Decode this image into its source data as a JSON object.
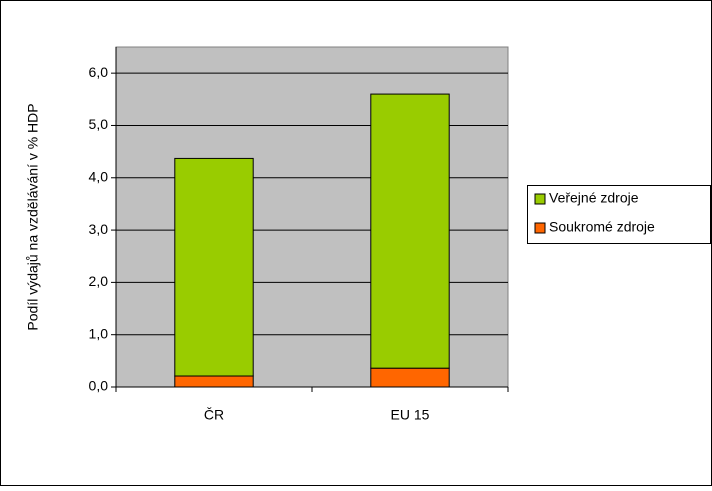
{
  "chart_data": {
    "type": "stacked_bar",
    "ylabel": "Podíl výdajů na vzdělávání v % HDP",
    "categories": [
      "ČR",
      "EU 15"
    ],
    "series": [
      {
        "name": "Soukromé zdroje",
        "color": "#ff6600",
        "values": [
          0.21,
          0.36
        ]
      },
      {
        "name": "Veřejné zdroje",
        "color": "#99cc00",
        "values": [
          4.16,
          5.24
        ]
      }
    ],
    "ylim": [
      0,
      6.5
    ],
    "yticks": [
      {
        "value": 0,
        "label": "0,0"
      },
      {
        "value": 1,
        "label": "1,0"
      },
      {
        "value": 2,
        "label": "2,0"
      },
      {
        "value": 3,
        "label": "3,0"
      },
      {
        "value": 4,
        "label": "4,0"
      },
      {
        "value": 5,
        "label": "5,0"
      },
      {
        "value": 6,
        "label": "6,0"
      }
    ],
    "grid": true,
    "legend": "right"
  }
}
